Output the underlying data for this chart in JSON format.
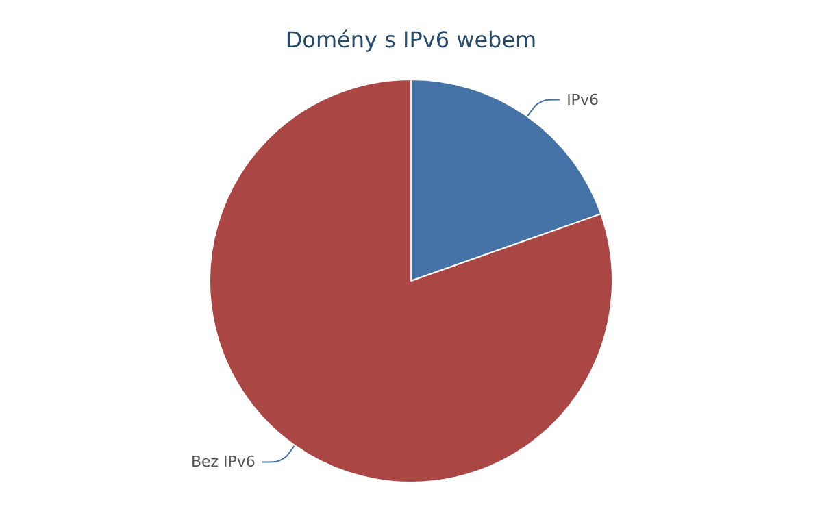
{
  "chart_data": {
    "type": "pie",
    "title": "Domény s IPv6 webem",
    "categories": [
      "IPv6",
      "Bez IPv6"
    ],
    "values": [
      19.6,
      80.4
    ],
    "colors": [
      "#4572a7",
      "#aa4643"
    ],
    "legend": false
  }
}
